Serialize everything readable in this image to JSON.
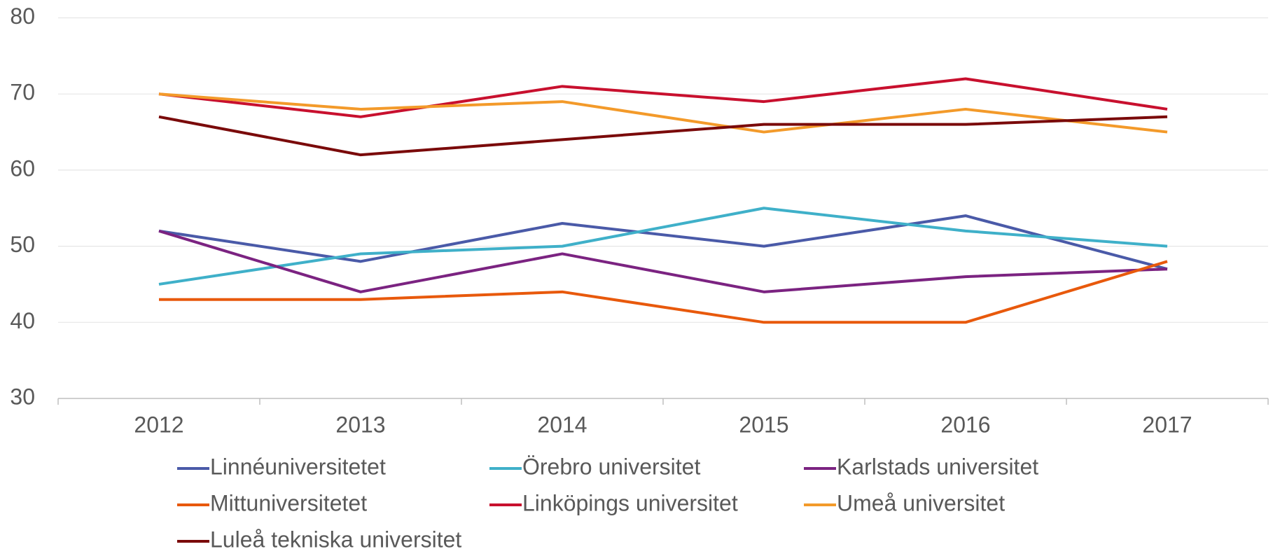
{
  "chart_data": {
    "type": "line",
    "categories": [
      "2012",
      "2013",
      "2014",
      "2015",
      "2016",
      "2017"
    ],
    "series": [
      {
        "name": "Linnéuniversitetet",
        "color": "#4a5aa8",
        "values": [
          52,
          48,
          53,
          50,
          54,
          47
        ]
      },
      {
        "name": "Örebro universitet",
        "color": "#3fb0c9",
        "values": [
          45,
          49,
          50,
          55,
          52,
          50
        ]
      },
      {
        "name": "Karlstads universitet",
        "color": "#7b2381",
        "values": [
          52,
          44,
          49,
          44,
          46,
          47
        ]
      },
      {
        "name": "Mittuniversitetet",
        "color": "#e8590c",
        "values": [
          43,
          43,
          44,
          40,
          40,
          48
        ]
      },
      {
        "name": "Linköpings universitet",
        "color": "#c8102e",
        "values": [
          70,
          67,
          71,
          69,
          72,
          68
        ]
      },
      {
        "name": "Umeå universitet",
        "color": "#f39a2a",
        "values": [
          70,
          68,
          69,
          65,
          68,
          65
        ]
      },
      {
        "name": "Luleå tekniska universitet",
        "color": "#7a0a0a",
        "values": [
          67,
          62,
          64,
          66,
          66,
          67
        ]
      }
    ],
    "ylim": [
      30,
      80
    ],
    "yticks": [
      30,
      40,
      50,
      60,
      70,
      80
    ],
    "grid": true,
    "legend": "bottom"
  }
}
